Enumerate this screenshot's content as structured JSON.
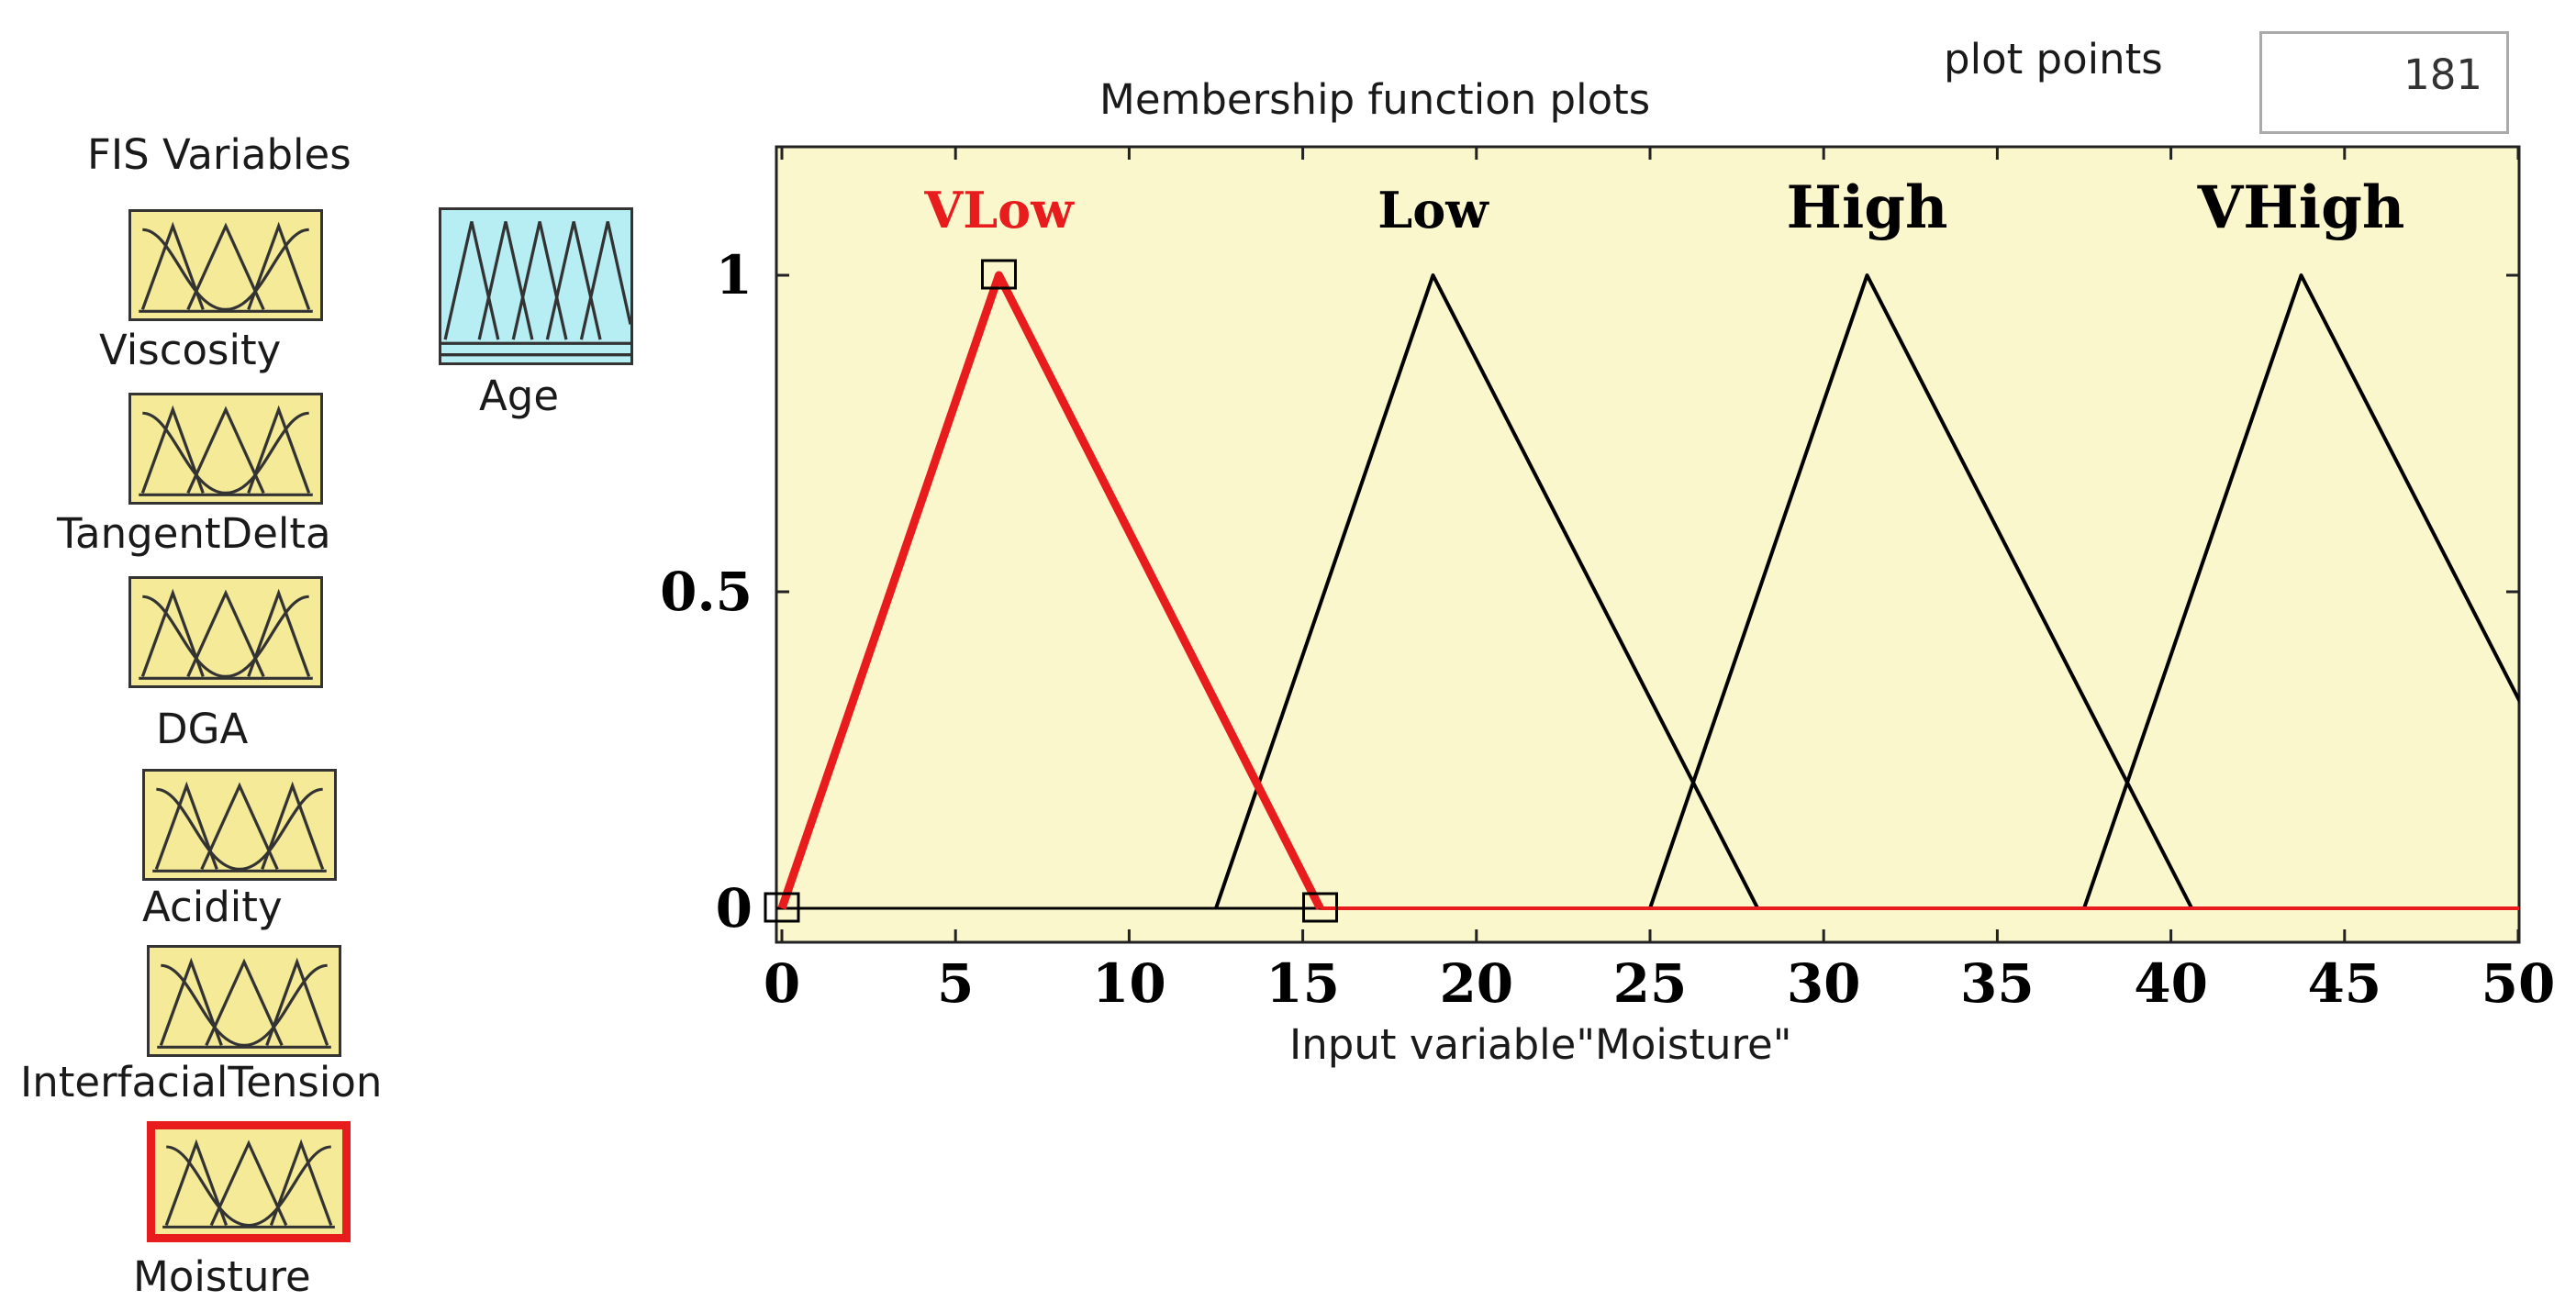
{
  "fis_panel": {
    "title": "FIS Variables",
    "inputs": [
      {
        "label": "Viscosity"
      },
      {
        "label": "TangentDelta"
      },
      {
        "label": "DGA"
      },
      {
        "label": "Acidity"
      },
      {
        "label": "InterfacialTension"
      },
      {
        "label": "Moisture",
        "selected": true
      }
    ],
    "outputs": [
      {
        "label": "Age"
      }
    ]
  },
  "plot_header": {
    "title": "Membership function  plots",
    "plot_points_label": "plot points",
    "plot_points_value": "181"
  },
  "chart_data": {
    "type": "line",
    "xlabel": "Input variable\"Moisture\"",
    "xlim": [
      0,
      50
    ],
    "ylim": [
      0,
      1
    ],
    "x_ticks": [
      "0",
      "5",
      "10",
      "15",
      "20",
      "25",
      "30",
      "35",
      "40",
      "45",
      "50"
    ],
    "y_ticks": [
      "0",
      "0.5",
      "1"
    ],
    "series": [
      {
        "name": "VLow",
        "points": [
          [
            0,
            0
          ],
          [
            6.25,
            1
          ],
          [
            15.5,
            0
          ]
        ],
        "color": "#e81c1c",
        "selected": true
      },
      {
        "name": "Low",
        "points": [
          [
            12.5,
            0
          ],
          [
            18.75,
            1
          ],
          [
            28.1,
            0
          ]
        ],
        "color": "#000000"
      },
      {
        "name": "High",
        "points": [
          [
            25,
            0
          ],
          [
            31.25,
            1
          ],
          [
            40.6,
            0
          ]
        ],
        "color": "#000000"
      },
      {
        "name": "VHigh",
        "points": [
          [
            37.5,
            0
          ],
          [
            43.75,
            1
          ],
          [
            53.1,
            0
          ]
        ],
        "color": "#000000"
      }
    ]
  }
}
